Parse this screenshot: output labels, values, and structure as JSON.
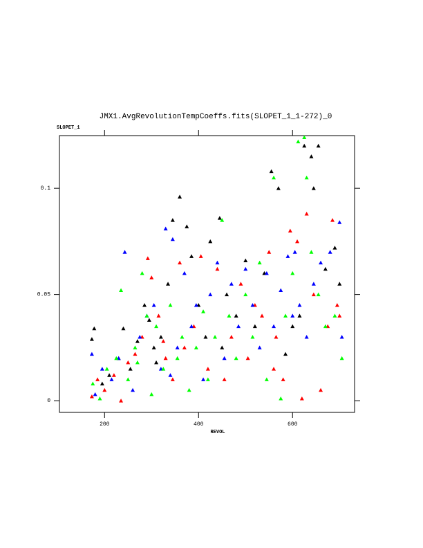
{
  "chart_data": {
    "type": "scatter",
    "title": "JMX1.AvgRevolutionTempCoeffs.fits(SLOPET_1_1-272)_0",
    "x_label": "REVOL",
    "y_label": "SLOPET_1",
    "xlim": [
      104,
      732
    ],
    "ylim": [
      -0.0055,
      0.1248
    ],
    "xticks": [
      200,
      400,
      600
    ],
    "yticks": [
      0,
      0.05,
      0.1
    ],
    "series": [
      {
        "color": "#000000",
        "x": [
          173,
          178,
          195,
          210,
          230,
          240,
          255,
          270,
          285,
          295,
          305,
          320,
          335,
          345,
          360,
          375,
          385,
          400,
          415,
          425,
          445,
          460,
          480,
          500,
          520,
          540,
          555,
          570,
          585,
          600,
          615,
          625,
          640,
          655,
          645,
          670,
          690,
          700,
          310,
          450
        ],
        "values": [
          0.029,
          0.034,
          0.008,
          0.012,
          0.02,
          0.034,
          0.015,
          0.028,
          0.045,
          0.038,
          0.025,
          0.03,
          0.055,
          0.085,
          0.096,
          0.082,
          0.068,
          0.045,
          0.03,
          0.075,
          0.086,
          0.05,
          0.04,
          0.066,
          0.035,
          0.06,
          0.108,
          0.1,
          0.022,
          0.035,
          0.04,
          0.12,
          0.115,
          0.12,
          0.1,
          0.062,
          0.072,
          0.055,
          0.018,
          0.025
        ]
      },
      {
        "color": "#ff0000",
        "x": [
          173,
          185,
          200,
          220,
          235,
          250,
          265,
          280,
          292,
          300,
          315,
          330,
          345,
          360,
          370,
          390,
          405,
          420,
          440,
          455,
          470,
          490,
          505,
          520,
          535,
          550,
          565,
          580,
          595,
          610,
          620,
          630,
          645,
          660,
          675,
          685,
          695,
          700,
          325,
          560
        ],
        "values": [
          0.002,
          0.01,
          0.005,
          0.012,
          0,
          0.018,
          0.022,
          0.03,
          0.067,
          0.058,
          0.04,
          0.02,
          0.01,
          0.065,
          0.025,
          0.035,
          0.068,
          0.015,
          0.062,
          0.01,
          0.03,
          0.055,
          0.02,
          0.045,
          0.04,
          0.07,
          0.03,
          0.01,
          0.08,
          0.075,
          0.001,
          0.088,
          0.05,
          0.005,
          0.035,
          0.085,
          0.045,
          0.04,
          0.028,
          0.015
        ]
      },
      {
        "color": "#0000ff",
        "x": [
          173,
          180,
          195,
          215,
          230,
          243,
          260,
          275,
          290,
          305,
          320,
          330,
          345,
          355,
          370,
          385,
          395,
          410,
          425,
          440,
          455,
          470,
          485,
          500,
          515,
          530,
          545,
          560,
          575,
          590,
          605,
          615,
          630,
          645,
          660,
          680,
          700,
          705,
          340,
          600
        ],
        "values": [
          0.022,
          0.003,
          0.015,
          0.01,
          0.02,
          0.07,
          0.005,
          0.03,
          0.04,
          0.045,
          0.015,
          0.081,
          0.076,
          0.025,
          0.06,
          0.035,
          0.045,
          0.01,
          0.05,
          0.065,
          0.02,
          0.055,
          0.035,
          0.062,
          0.045,
          0.025,
          0.06,
          0.035,
          0.052,
          0.068,
          0.07,
          0.045,
          0.03,
          0.055,
          0.065,
          0.07,
          0.084,
          0.03,
          0.012,
          0.04
        ]
      },
      {
        "color": "#00ff00",
        "x": [
          175,
          190,
          205,
          225,
          235,
          250,
          265,
          280,
          290,
          300,
          310,
          325,
          340,
          355,
          365,
          380,
          395,
          410,
          420,
          435,
          450,
          465,
          480,
          500,
          515,
          530,
          545,
          560,
          575,
          585,
          600,
          612,
          625,
          630,
          640,
          655,
          670,
          690,
          705,
          270
        ],
        "values": [
          0.008,
          0.001,
          0.015,
          0.02,
          0.052,
          0.01,
          0.025,
          0.06,
          0.04,
          0.003,
          0.035,
          0.015,
          0.045,
          0.02,
          0.03,
          0.005,
          0.025,
          0.042,
          0.01,
          0.03,
          0.085,
          0.04,
          0.02,
          0.05,
          0.03,
          0.065,
          0.01,
          0.105,
          0.001,
          0.04,
          0.06,
          0.122,
          0.124,
          0.105,
          0.07,
          0.05,
          0.035,
          0.04,
          0.02,
          0.018
        ]
      }
    ]
  }
}
